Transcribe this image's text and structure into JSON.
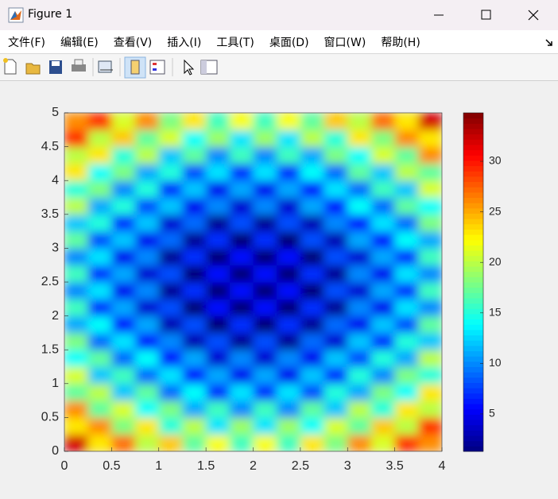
{
  "window": {
    "title": "Figure 1",
    "menus": [
      "文件(F)",
      "编辑(E)",
      "查看(V)",
      "插入(I)",
      "工具(T)",
      "桌面(D)",
      "窗口(W)",
      "帮助(H)"
    ]
  },
  "chart_data": {
    "type": "heatmap",
    "colormap": "jet",
    "xlim": [
      0,
      4
    ],
    "ylim": [
      0,
      5
    ],
    "xticks": [
      0,
      0.5,
      1,
      1.5,
      2,
      2.5,
      3,
      3.5,
      4
    ],
    "yticks": [
      0,
      0.5,
      1,
      1.5,
      2,
      2.5,
      3,
      3.5,
      4,
      4.5,
      5
    ],
    "clim": [
      1.3,
      34.8
    ],
    "cticks": [
      5,
      10,
      15,
      20,
      25,
      30
    ],
    "z": [
      [
        32,
        23,
        27,
        20,
        24,
        17,
        22,
        16,
        22,
        16,
        23,
        18,
        26,
        21,
        29,
        26
      ],
      [
        23,
        26,
        18,
        23,
        15,
        20,
        13,
        19,
        13,
        19,
        14,
        21,
        17,
        24,
        20,
        29
      ],
      [
        26,
        17,
        21,
        14,
        18,
        11,
        16,
        10,
        16,
        10,
        17,
        12,
        20,
        15,
        23,
        20
      ],
      [
        17,
        20,
        12,
        17,
        9,
        14,
        7,
        13,
        7,
        13,
        8,
        15,
        11,
        18,
        14,
        23
      ],
      [
        21,
        12,
        16,
        9,
        13,
        6,
        11,
        5,
        11,
        5,
        12,
        7,
        15,
        10,
        18,
        15
      ],
      [
        14,
        17,
        9,
        14,
        6,
        11,
        4,
        10,
        4,
        10,
        5,
        12,
        8,
        15,
        11,
        20
      ],
      [
        18,
        9,
        13,
        6,
        10,
        3,
        8,
        2,
        8,
        2,
        9,
        4,
        12,
        7,
        15,
        12
      ],
      [
        11,
        14,
        6,
        11,
        3,
        8,
        1,
        7,
        1,
        7,
        2,
        9,
        5,
        12,
        8,
        17
      ],
      [
        16,
        7,
        11,
        4,
        8,
        1,
        6,
        1,
        6,
        1,
        7,
        2,
        10,
        5,
        13,
        10
      ],
      [
        10,
        13,
        5,
        10,
        2,
        7,
        1,
        6,
        1,
        6,
        1,
        8,
        4,
        11,
        7,
        16
      ],
      [
        16,
        7,
        11,
        4,
        8,
        1,
        6,
        1,
        6,
        1,
        7,
        2,
        10,
        5,
        13,
        10
      ],
      [
        10,
        13,
        5,
        10,
        2,
        7,
        1,
        6,
        1,
        6,
        1,
        8,
        4,
        11,
        7,
        16
      ],
      [
        17,
        8,
        12,
        5,
        9,
        2,
        7,
        1,
        7,
        1,
        8,
        3,
        11,
        6,
        14,
        11
      ],
      [
        12,
        15,
        7,
        12,
        4,
        9,
        2,
        8,
        2,
        8,
        3,
        10,
        6,
        13,
        9,
        18
      ],
      [
        20,
        11,
        15,
        8,
        12,
        5,
        10,
        4,
        10,
        4,
        11,
        6,
        14,
        9,
        17,
        14
      ],
      [
        15,
        18,
        10,
        15,
        7,
        12,
        5,
        11,
        5,
        11,
        6,
        13,
        9,
        16,
        12,
        21
      ],
      [
        23,
        14,
        18,
        11,
        15,
        8,
        13,
        7,
        13,
        7,
        14,
        9,
        17,
        12,
        20,
        17
      ],
      [
        20,
        23,
        15,
        20,
        12,
        17,
        10,
        16,
        10,
        16,
        11,
        18,
        14,
        21,
        17,
        26
      ],
      [
        29,
        20,
        24,
        17,
        21,
        14,
        19,
        13,
        19,
        13,
        20,
        15,
        23,
        18,
        26,
        23
      ],
      [
        26,
        29,
        21,
        26,
        18,
        23,
        16,
        22,
        16,
        22,
        17,
        24,
        20,
        27,
        23,
        32
      ]
    ]
  }
}
